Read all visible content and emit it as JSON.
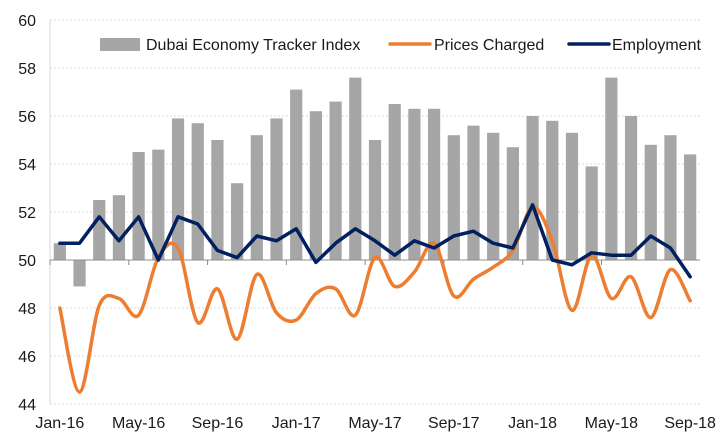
{
  "chart_data": {
    "type": "bar",
    "title": "",
    "xlabel": "",
    "ylabel": "",
    "ylim": [
      44,
      60
    ],
    "yticks": [
      44,
      46,
      48,
      50,
      52,
      54,
      56,
      58,
      60
    ],
    "bar_baseline": 50,
    "grid": true,
    "legend_position": "top",
    "categories": [
      "Jan-16",
      "Feb-16",
      "Mar-16",
      "Apr-16",
      "May-16",
      "Jun-16",
      "Jul-16",
      "Aug-16",
      "Sep-16",
      "Oct-16",
      "Nov-16",
      "Dec-16",
      "Jan-17",
      "Feb-17",
      "Mar-17",
      "Apr-17",
      "May-17",
      "Jun-17",
      "Jul-17",
      "Aug-17",
      "Sep-17",
      "Oct-17",
      "Nov-17",
      "Dec-17",
      "Jan-18",
      "Feb-18",
      "Mar-18",
      "Apr-18",
      "May-18",
      "Jun-18",
      "Jul-18",
      "Aug-18",
      "Sep-18"
    ],
    "xtick_labels": [
      "Jan-16",
      "May-16",
      "Sep-16",
      "Jan-17",
      "May-17",
      "Sep-17",
      "Jan-18",
      "May-18",
      "Sep-18"
    ],
    "series": [
      {
        "name": "Dubai Economy Tracker Index",
        "kind": "bar",
        "color": "#a6a6a6",
        "values": [
          50.7,
          48.9,
          52.5,
          52.7,
          54.5,
          54.6,
          55.9,
          55.7,
          55.0,
          53.2,
          55.2,
          55.9,
          57.1,
          56.2,
          56.6,
          57.6,
          55.0,
          56.5,
          56.3,
          56.3,
          55.2,
          55.6,
          55.3,
          54.7,
          56.0,
          55.8,
          55.3,
          53.9,
          57.6,
          56.0,
          54.8,
          55.2,
          54.4
        ]
      },
      {
        "name": "Prices Charged",
        "kind": "line-smooth",
        "color": "#ed7d31",
        "values": [
          48.0,
          44.5,
          48.1,
          48.4,
          47.7,
          50.1,
          50.5,
          47.4,
          48.8,
          46.7,
          49.4,
          47.8,
          47.5,
          48.6,
          48.8,
          47.7,
          50.1,
          48.9,
          49.5,
          50.7,
          48.5,
          49.2,
          49.7,
          50.4,
          52.2,
          50.8,
          47.9,
          50.2,
          48.4,
          49.3,
          47.6,
          49.6,
          48.3
        ]
      },
      {
        "name": "Employment",
        "kind": "line",
        "color": "#002060",
        "values": [
          50.7,
          50.7,
          51.8,
          50.8,
          51.8,
          50.0,
          51.8,
          51.5,
          50.4,
          50.1,
          51.0,
          50.8,
          51.3,
          49.9,
          50.7,
          51.3,
          50.8,
          50.2,
          50.8,
          50.5,
          51.0,
          51.2,
          50.7,
          50.5,
          52.3,
          50.0,
          49.8,
          50.3,
          50.2,
          50.2,
          51.0,
          50.5,
          49.3
        ]
      }
    ]
  },
  "legend": {
    "items": [
      {
        "label": "Dubai Economy Tracker Index",
        "icon": "gray-bar-swatch"
      },
      {
        "label": "Prices Charged",
        "icon": "orange-line-swatch"
      },
      {
        "label": "Employment",
        "icon": "navy-line-swatch"
      }
    ]
  }
}
